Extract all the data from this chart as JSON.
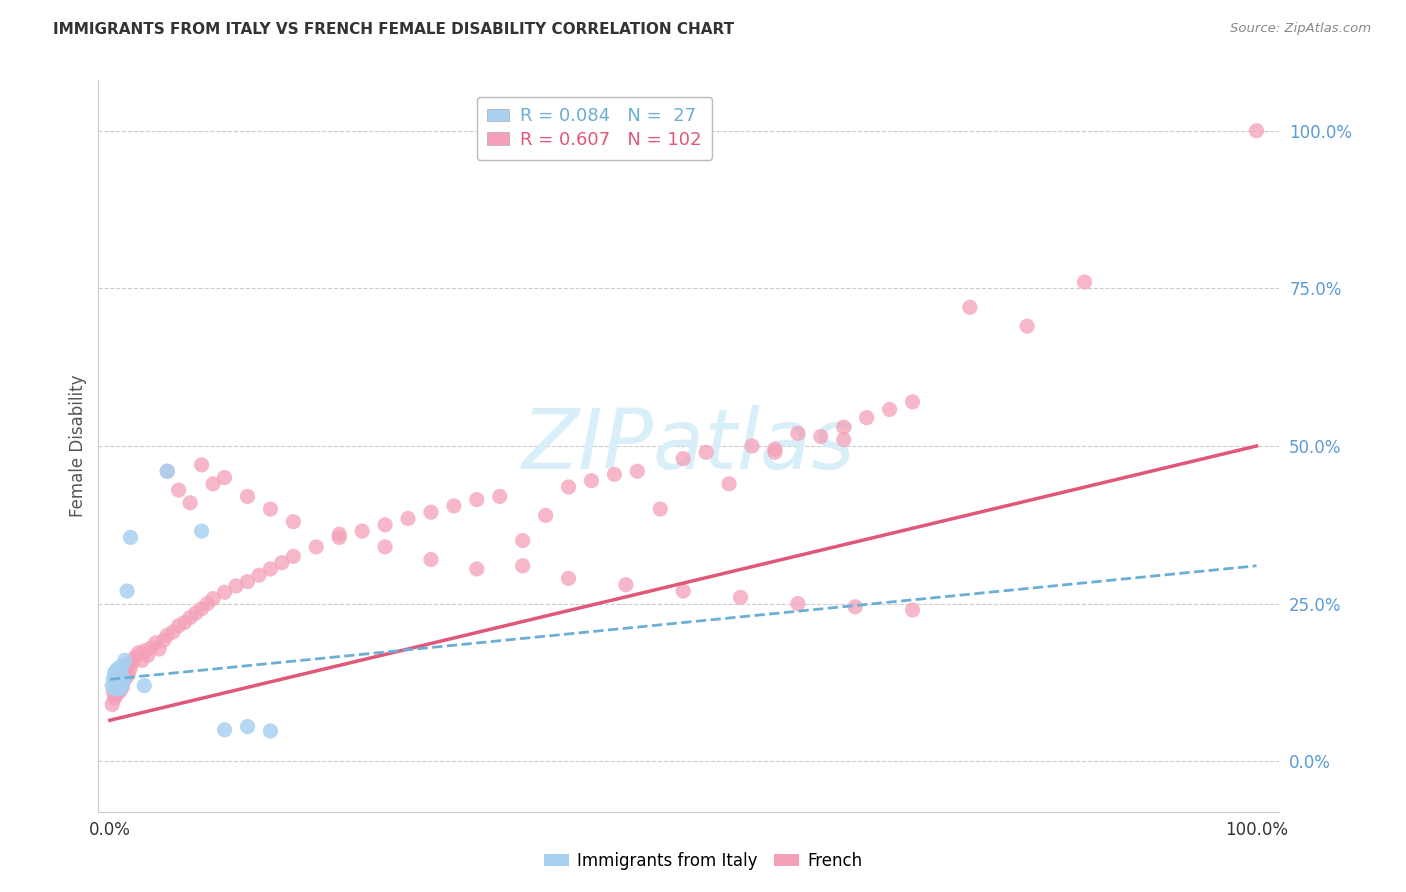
{
  "title": "IMMIGRANTS FROM ITALY VS FRENCH FEMALE DISABILITY CORRELATION CHART",
  "source": "Source: ZipAtlas.com",
  "ylabel": "Female Disability",
  "color_italy": "#a8d0f0",
  "color_french": "#f4a0b8",
  "color_italy_line": "#6baed6",
  "color_french_line": "#e05878",
  "color_ytick": "#5b9bd5",
  "watermark_color": "#d8eef8",
  "grid_color": "#cccccc",
  "italy_x": [
    0.002,
    0.003,
    0.004,
    0.004,
    0.005,
    0.005,
    0.006,
    0.006,
    0.007,
    0.007,
    0.008,
    0.008,
    0.009,
    0.009,
    0.01,
    0.01,
    0.011,
    0.012,
    0.013,
    0.015,
    0.018,
    0.03,
    0.05,
    0.08,
    0.1,
    0.12,
    0.14
  ],
  "italy_y": [
    0.12,
    0.13,
    0.115,
    0.14,
    0.125,
    0.135,
    0.118,
    0.145,
    0.128,
    0.138,
    0.122,
    0.148,
    0.115,
    0.142,
    0.119,
    0.15,
    0.132,
    0.128,
    0.16,
    0.27,
    0.355,
    0.12,
    0.46,
    0.365,
    0.05,
    0.055,
    0.048
  ],
  "french_x": [
    0.002,
    0.003,
    0.004,
    0.005,
    0.005,
    0.006,
    0.006,
    0.007,
    0.007,
    0.008,
    0.008,
    0.009,
    0.01,
    0.01,
    0.011,
    0.012,
    0.013,
    0.014,
    0.015,
    0.016,
    0.017,
    0.018,
    0.02,
    0.022,
    0.025,
    0.028,
    0.03,
    0.033,
    0.036,
    0.04,
    0.043,
    0.047,
    0.05,
    0.055,
    0.06,
    0.065,
    0.07,
    0.075,
    0.08,
    0.085,
    0.09,
    0.1,
    0.11,
    0.12,
    0.13,
    0.14,
    0.15,
    0.16,
    0.18,
    0.2,
    0.22,
    0.24,
    0.26,
    0.28,
    0.3,
    0.32,
    0.34,
    0.36,
    0.38,
    0.4,
    0.42,
    0.44,
    0.46,
    0.48,
    0.5,
    0.52,
    0.54,
    0.56,
    0.58,
    0.6,
    0.62,
    0.64,
    0.66,
    0.68,
    0.7,
    0.05,
    0.06,
    0.07,
    0.08,
    0.09,
    0.1,
    0.12,
    0.14,
    0.16,
    0.2,
    0.24,
    0.28,
    0.32,
    0.36,
    0.4,
    0.45,
    0.5,
    0.55,
    0.6,
    0.65,
    0.7,
    0.75,
    0.8,
    0.85,
    1.0,
    0.58,
    0.64
  ],
  "french_y": [
    0.09,
    0.11,
    0.1,
    0.12,
    0.105,
    0.115,
    0.13,
    0.108,
    0.125,
    0.118,
    0.135,
    0.112,
    0.122,
    0.14,
    0.118,
    0.128,
    0.145,
    0.132,
    0.15,
    0.138,
    0.155,
    0.148,
    0.158,
    0.165,
    0.172,
    0.16,
    0.175,
    0.168,
    0.18,
    0.188,
    0.178,
    0.192,
    0.2,
    0.205,
    0.215,
    0.22,
    0.228,
    0.235,
    0.242,
    0.25,
    0.258,
    0.268,
    0.278,
    0.285,
    0.295,
    0.305,
    0.315,
    0.325,
    0.34,
    0.355,
    0.365,
    0.375,
    0.385,
    0.395,
    0.405,
    0.415,
    0.42,
    0.35,
    0.39,
    0.435,
    0.445,
    0.455,
    0.46,
    0.4,
    0.48,
    0.49,
    0.44,
    0.5,
    0.495,
    0.52,
    0.515,
    0.53,
    0.545,
    0.558,
    0.57,
    0.46,
    0.43,
    0.41,
    0.47,
    0.44,
    0.45,
    0.42,
    0.4,
    0.38,
    0.36,
    0.34,
    0.32,
    0.305,
    0.31,
    0.29,
    0.28,
    0.27,
    0.26,
    0.25,
    0.245,
    0.24,
    0.72,
    0.69,
    0.76,
    1.0,
    0.49,
    0.51
  ],
  "french_line_x0": 0.0,
  "french_line_y0": 0.065,
  "french_line_x1": 1.0,
  "french_line_y1": 0.5,
  "italy_line_x0": 0.0,
  "italy_line_y0": 0.13,
  "italy_line_x1": 1.0,
  "italy_line_y1": 0.31,
  "xlim": [
    -0.01,
    1.02
  ],
  "ylim": [
    -0.08,
    1.08
  ],
  "yticks": [
    0.0,
    0.25,
    0.5,
    0.75,
    1.0
  ],
  "ytick_labels": [
    "0.0%",
    "25.0%",
    "50.0%",
    "75.0%",
    "100.0%"
  ],
  "xtick_labels": [
    "0.0%",
    "100.0%"
  ]
}
